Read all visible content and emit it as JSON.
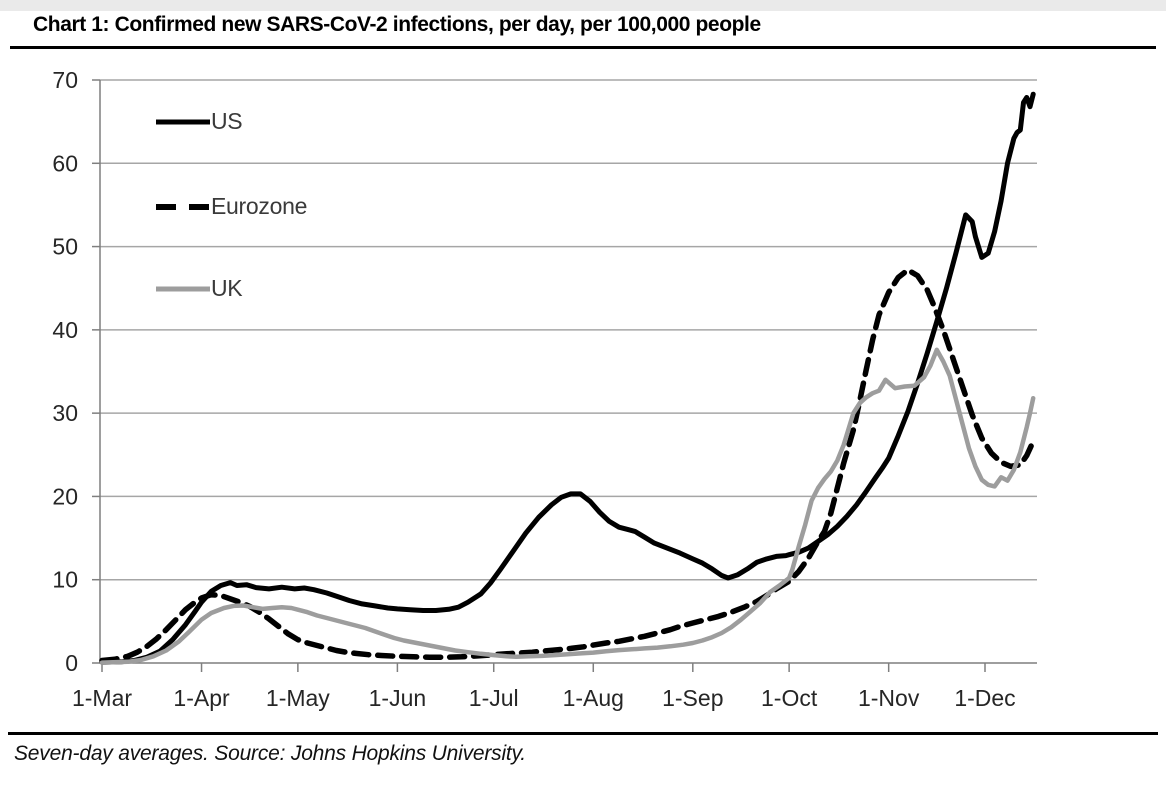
{
  "title": "Chart 1: Confirmed new SARS-CoV-2 infections, per day, per 100,000 people",
  "footnote": "Seven-day averages. Source: Johns Hopkins University.",
  "colors": {
    "us_line": "#000000",
    "eurozone_line": "#000000",
    "uk_line": "#9d9d9d",
    "grid": "#a6a6a6",
    "axis": "#7f7f7f",
    "tick_text": "#262626"
  },
  "chart_data": {
    "type": "line",
    "title": "Chart 1: Confirmed new SARS-CoV-2 infections, per day, per 100,000 people",
    "xlabel": "",
    "ylabel": "",
    "grid": "horizontal",
    "legend_position": "inside-top-left",
    "y_axis": {
      "min": 0,
      "max": 70,
      "tick_step": 10,
      "ticks": [
        0,
        10,
        20,
        30,
        40,
        50,
        60,
        70
      ]
    },
    "x_axis": {
      "unit": "days-since-1-Mar-2020",
      "range_days": [
        0,
        291
      ],
      "ticks": [
        {
          "day": 0,
          "label": "1-Mar"
        },
        {
          "day": 31,
          "label": "1-Apr"
        },
        {
          "day": 61,
          "label": "1-May"
        },
        {
          "day": 92,
          "label": "1-Jun"
        },
        {
          "day": 122,
          "label": "1-Jul"
        },
        {
          "day": 153,
          "label": "1-Aug"
        },
        {
          "day": 184,
          "label": "1-Sep"
        },
        {
          "day": 214,
          "label": "1-Oct"
        },
        {
          "day": 245,
          "label": "1-Nov"
        },
        {
          "day": 275,
          "label": "1-Dec"
        }
      ]
    },
    "series": [
      {
        "name": "US",
        "color": "#000000",
        "style": "solid",
        "width": 5,
        "points": [
          [
            0,
            0.1
          ],
          [
            6,
            0.15
          ],
          [
            10,
            0.3
          ],
          [
            14,
            0.7
          ],
          [
            18,
            1.4
          ],
          [
            22,
            2.8
          ],
          [
            26,
            4.6
          ],
          [
            29,
            6.2
          ],
          [
            31,
            7.3
          ],
          [
            34,
            8.6
          ],
          [
            37,
            9.3
          ],
          [
            40,
            9.65
          ],
          [
            42,
            9.3
          ],
          [
            45,
            9.4
          ],
          [
            48,
            9.05
          ],
          [
            52,
            8.9
          ],
          [
            56,
            9.1
          ],
          [
            60,
            8.9
          ],
          [
            63,
            9.0
          ],
          [
            66,
            8.8
          ],
          [
            70,
            8.4
          ],
          [
            74,
            7.9
          ],
          [
            77,
            7.5
          ],
          [
            81,
            7.1
          ],
          [
            85,
            6.85
          ],
          [
            89,
            6.6
          ],
          [
            92,
            6.5
          ],
          [
            96,
            6.4
          ],
          [
            100,
            6.3
          ],
          [
            104,
            6.3
          ],
          [
            108,
            6.45
          ],
          [
            111,
            6.7
          ],
          [
            114,
            7.3
          ],
          [
            118,
            8.3
          ],
          [
            121,
            9.6
          ],
          [
            124,
            11.2
          ],
          [
            128,
            13.4
          ],
          [
            132,
            15.6
          ],
          [
            136,
            17.5
          ],
          [
            140,
            19.0
          ],
          [
            143,
            19.9
          ],
          [
            146,
            20.3
          ],
          [
            149,
            20.3
          ],
          [
            152,
            19.4
          ],
          [
            155,
            18.1
          ],
          [
            158,
            17.0
          ],
          [
            161,
            16.3
          ],
          [
            164,
            16.0
          ],
          [
            166,
            15.8
          ],
          [
            169,
            15.1
          ],
          [
            172,
            14.4
          ],
          [
            176,
            13.8
          ],
          [
            180,
            13.2
          ],
          [
            184,
            12.5
          ],
          [
            187,
            12.0
          ],
          [
            190,
            11.3
          ],
          [
            193,
            10.5
          ],
          [
            195,
            10.2
          ],
          [
            198,
            10.6
          ],
          [
            201,
            11.3
          ],
          [
            204,
            12.1
          ],
          [
            207,
            12.5
          ],
          [
            210,
            12.8
          ],
          [
            213,
            12.9
          ],
          [
            214,
            13.0
          ],
          [
            217,
            13.3
          ],
          [
            220,
            13.8
          ],
          [
            223,
            14.6
          ],
          [
            226,
            15.4
          ],
          [
            229,
            16.4
          ],
          [
            232,
            17.6
          ],
          [
            235,
            19.0
          ],
          [
            238,
            20.6
          ],
          [
            241,
            22.3
          ],
          [
            243,
            23.4
          ],
          [
            245,
            24.6
          ],
          [
            248,
            27.3
          ],
          [
            251,
            30.2
          ],
          [
            254,
            33.6
          ],
          [
            257,
            37.2
          ],
          [
            260,
            41.0
          ],
          [
            263,
            45.0
          ],
          [
            266,
            49.3
          ],
          [
            268,
            52.3
          ],
          [
            269,
            53.8
          ],
          [
            271,
            53.0
          ],
          [
            272,
            51.2
          ],
          [
            274,
            48.7
          ],
          [
            276,
            49.2
          ],
          [
            278,
            51.8
          ],
          [
            280,
            55.5
          ],
          [
            282,
            60.0
          ],
          [
            284,
            63.0
          ],
          [
            285,
            63.7
          ],
          [
            286,
            64.0
          ],
          [
            287,
            67.3
          ],
          [
            288,
            67.9
          ],
          [
            289,
            66.8
          ],
          [
            290,
            68.3
          ]
        ]
      },
      {
        "name": "Eurozone",
        "color": "#000000",
        "style": "dashed",
        "width": 5.5,
        "points": [
          [
            0,
            0.3
          ],
          [
            4,
            0.45
          ],
          [
            8,
            0.8
          ],
          [
            11,
            1.3
          ],
          [
            14,
            2.0
          ],
          [
            17,
            2.9
          ],
          [
            20,
            4.0
          ],
          [
            23,
            5.2
          ],
          [
            26,
            6.4
          ],
          [
            29,
            7.3
          ],
          [
            31,
            7.8
          ],
          [
            34,
            8.2
          ],
          [
            37,
            8.1
          ],
          [
            40,
            7.7
          ],
          [
            43,
            7.3
          ],
          [
            46,
            6.8
          ],
          [
            49,
            6.1
          ],
          [
            52,
            5.3
          ],
          [
            55,
            4.4
          ],
          [
            58,
            3.5
          ],
          [
            61,
            2.8
          ],
          [
            64,
            2.4
          ],
          [
            67,
            2.1
          ],
          [
            70,
            1.8
          ],
          [
            73,
            1.5
          ],
          [
            76,
            1.3
          ],
          [
            79,
            1.15
          ],
          [
            83,
            1.0
          ],
          [
            87,
            0.9
          ],
          [
            92,
            0.8
          ],
          [
            97,
            0.75
          ],
          [
            102,
            0.7
          ],
          [
            107,
            0.7
          ],
          [
            112,
            0.75
          ],
          [
            117,
            0.85
          ],
          [
            122,
            1.0
          ],
          [
            126,
            1.1
          ],
          [
            130,
            1.2
          ],
          [
            134,
            1.3
          ],
          [
            138,
            1.45
          ],
          [
            142,
            1.6
          ],
          [
            146,
            1.75
          ],
          [
            150,
            1.95
          ],
          [
            153,
            2.15
          ],
          [
            157,
            2.4
          ],
          [
            161,
            2.6
          ],
          [
            165,
            2.9
          ],
          [
            169,
            3.2
          ],
          [
            173,
            3.6
          ],
          [
            177,
            4.0
          ],
          [
            180,
            4.4
          ],
          [
            184,
            4.8
          ],
          [
            188,
            5.2
          ],
          [
            192,
            5.6
          ],
          [
            196,
            6.1
          ],
          [
            200,
            6.7
          ],
          [
            204,
            7.4
          ],
          [
            207,
            8.1
          ],
          [
            210,
            8.9
          ],
          [
            214,
            9.8
          ],
          [
            217,
            11.0
          ],
          [
            220,
            12.6
          ],
          [
            223,
            14.6
          ],
          [
            225,
            15.8
          ],
          [
            227,
            18.0
          ],
          [
            229,
            21.0
          ],
          [
            231,
            24.0
          ],
          [
            234,
            28.0
          ],
          [
            236,
            31.5
          ],
          [
            238,
            35.2
          ],
          [
            240,
            38.8
          ],
          [
            242,
            41.8
          ],
          [
            245,
            44.5
          ],
          [
            248,
            46.3
          ],
          [
            251,
            47.2
          ],
          [
            254,
            46.5
          ],
          [
            257,
            44.8
          ],
          [
            259,
            43.0
          ],
          [
            262,
            40.0
          ],
          [
            265,
            36.6
          ],
          [
            268,
            33.2
          ],
          [
            271,
            29.8
          ],
          [
            274,
            27.0
          ],
          [
            277,
            25.2
          ],
          [
            280,
            24.1
          ],
          [
            283,
            23.6
          ],
          [
            286,
            23.8
          ],
          [
            288,
            24.9
          ],
          [
            290,
            26.6
          ]
        ]
      },
      {
        "name": "UK",
        "color": "#9d9d9d",
        "style": "solid",
        "width": 4.5,
        "points": [
          [
            0,
            0.05
          ],
          [
            8,
            0.15
          ],
          [
            12,
            0.35
          ],
          [
            16,
            0.8
          ],
          [
            20,
            1.5
          ],
          [
            24,
            2.6
          ],
          [
            27,
            3.7
          ],
          [
            31,
            5.2
          ],
          [
            34,
            6.0
          ],
          [
            38,
            6.6
          ],
          [
            41,
            6.85
          ],
          [
            44,
            6.9
          ],
          [
            47,
            6.7
          ],
          [
            50,
            6.5
          ],
          [
            53,
            6.6
          ],
          [
            56,
            6.7
          ],
          [
            59,
            6.6
          ],
          [
            61,
            6.4
          ],
          [
            64,
            6.1
          ],
          [
            67,
            5.7
          ],
          [
            70,
            5.4
          ],
          [
            73,
            5.1
          ],
          [
            76,
            4.8
          ],
          [
            79,
            4.5
          ],
          [
            82,
            4.2
          ],
          [
            85,
            3.8
          ],
          [
            88,
            3.4
          ],
          [
            91,
            3.0
          ],
          [
            94,
            2.7
          ],
          [
            98,
            2.4
          ],
          [
            102,
            2.1
          ],
          [
            106,
            1.8
          ],
          [
            110,
            1.5
          ],
          [
            114,
            1.3
          ],
          [
            118,
            1.1
          ],
          [
            122,
            0.95
          ],
          [
            126,
            0.8
          ],
          [
            129,
            0.75
          ],
          [
            133,
            0.8
          ],
          [
            137,
            0.85
          ],
          [
            141,
            0.95
          ],
          [
            145,
            1.05
          ],
          [
            149,
            1.15
          ],
          [
            153,
            1.25
          ],
          [
            157,
            1.4
          ],
          [
            161,
            1.55
          ],
          [
            165,
            1.65
          ],
          [
            169,
            1.75
          ],
          [
            173,
            1.85
          ],
          [
            177,
            2.0
          ],
          [
            181,
            2.2
          ],
          [
            184,
            2.4
          ],
          [
            187,
            2.7
          ],
          [
            190,
            3.1
          ],
          [
            193,
            3.6
          ],
          [
            196,
            4.3
          ],
          [
            199,
            5.2
          ],
          [
            202,
            6.2
          ],
          [
            205,
            7.2
          ],
          [
            208,
            8.5
          ],
          [
            211,
            9.3
          ],
          [
            214,
            10.2
          ],
          [
            215,
            11.2
          ],
          [
            217,
            14.0
          ],
          [
            219,
            16.6
          ],
          [
            221,
            19.5
          ],
          [
            223,
            21.0
          ],
          [
            225,
            22.1
          ],
          [
            227,
            23.0
          ],
          [
            229,
            24.3
          ],
          [
            231,
            26.2
          ],
          [
            234,
            30.0
          ],
          [
            236,
            31.2
          ],
          [
            238,
            31.9
          ],
          [
            240,
            32.4
          ],
          [
            242,
            32.7
          ],
          [
            244,
            34.0
          ],
          [
            247,
            33.0
          ],
          [
            250,
            33.2
          ],
          [
            253,
            33.3
          ],
          [
            256,
            34.3
          ],
          [
            258,
            35.7
          ],
          [
            260,
            37.6
          ],
          [
            262,
            36.2
          ],
          [
            264,
            34.5
          ],
          [
            266,
            31.6
          ],
          [
            268,
            28.7
          ],
          [
            270,
            25.8
          ],
          [
            272,
            23.6
          ],
          [
            274,
            22.0
          ],
          [
            276,
            21.4
          ],
          [
            278,
            21.2
          ],
          [
            280,
            22.3
          ],
          [
            282,
            21.9
          ],
          [
            284,
            23.2
          ],
          [
            286,
            25.3
          ],
          [
            288,
            28.3
          ],
          [
            289,
            30.0
          ],
          [
            290,
            31.8
          ]
        ]
      }
    ]
  },
  "legend": {
    "us_label": "US",
    "eurozone_label": "Eurozone",
    "uk_label": "UK"
  }
}
